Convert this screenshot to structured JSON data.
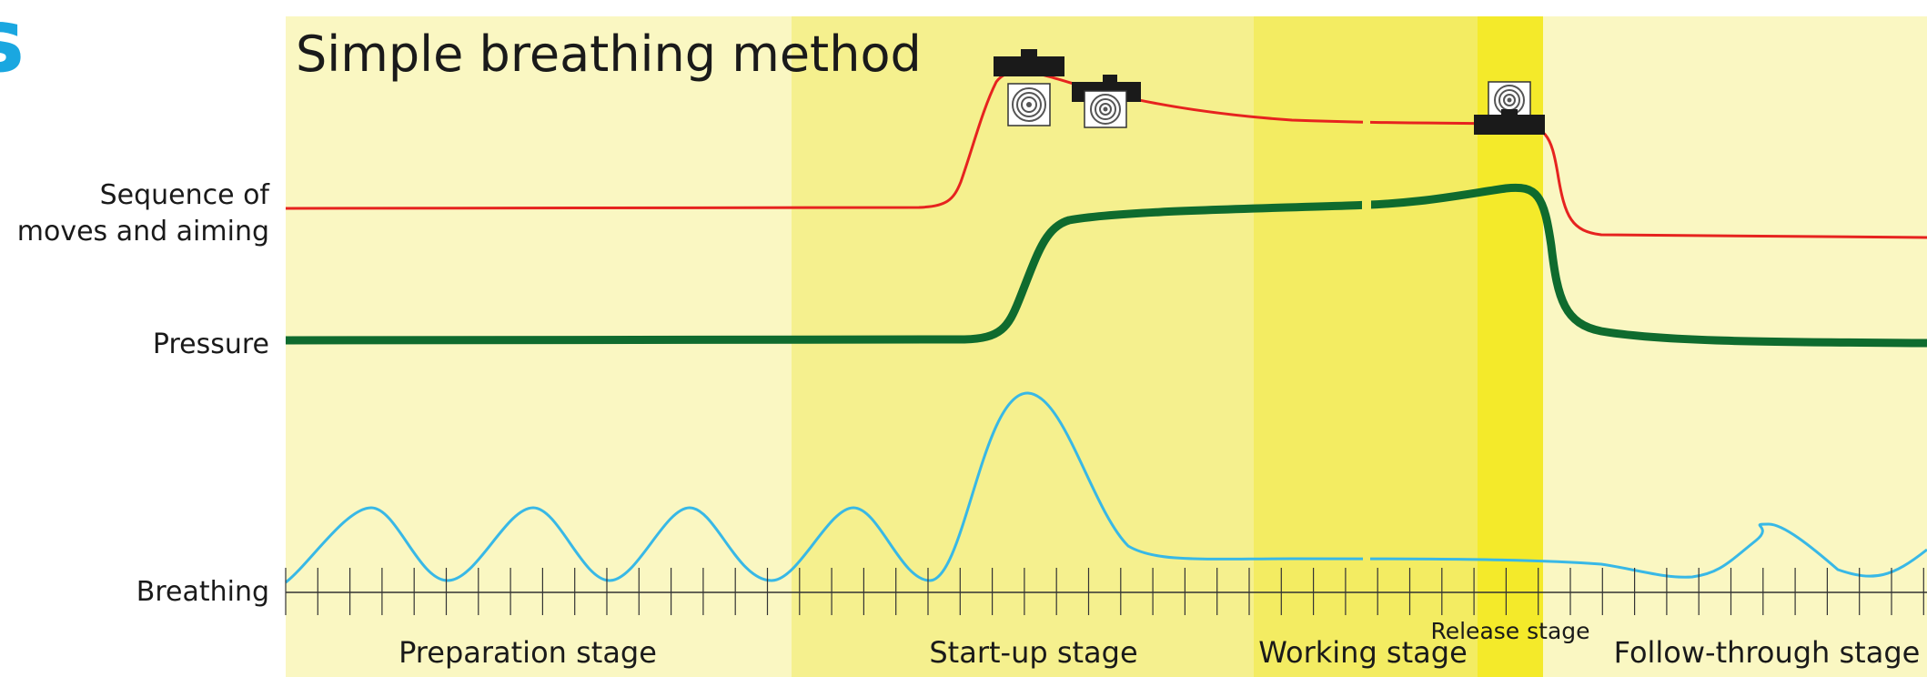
{
  "title": "Simple breathing method",
  "logo_fragment": "s",
  "row_labels": {
    "sequence_line1": "Sequence of",
    "sequence_line2": "moves and aiming",
    "pressure": "Pressure",
    "breathing": "Breathing"
  },
  "stages": {
    "preparation": "Preparation stage",
    "startup": "Start-up stage",
    "working": "Working stage",
    "release": "Release stage",
    "follow_through": "Follow-through stage"
  },
  "colors": {
    "preparation_bg": "#faf7c2",
    "startup_bg": "#f5f08e",
    "working_bg": "#f3ec62",
    "release_bg": "#f4ea2a",
    "follow_bg": "#faf7c2",
    "sequence_line": "#e6231f",
    "pressure_line": "#0f6b2e",
    "breathing_line": "#38b8e6",
    "logo": "#1aa7e0"
  },
  "icons": {
    "sight_block": "rifle-sight-icon",
    "target": "target-icon"
  }
}
